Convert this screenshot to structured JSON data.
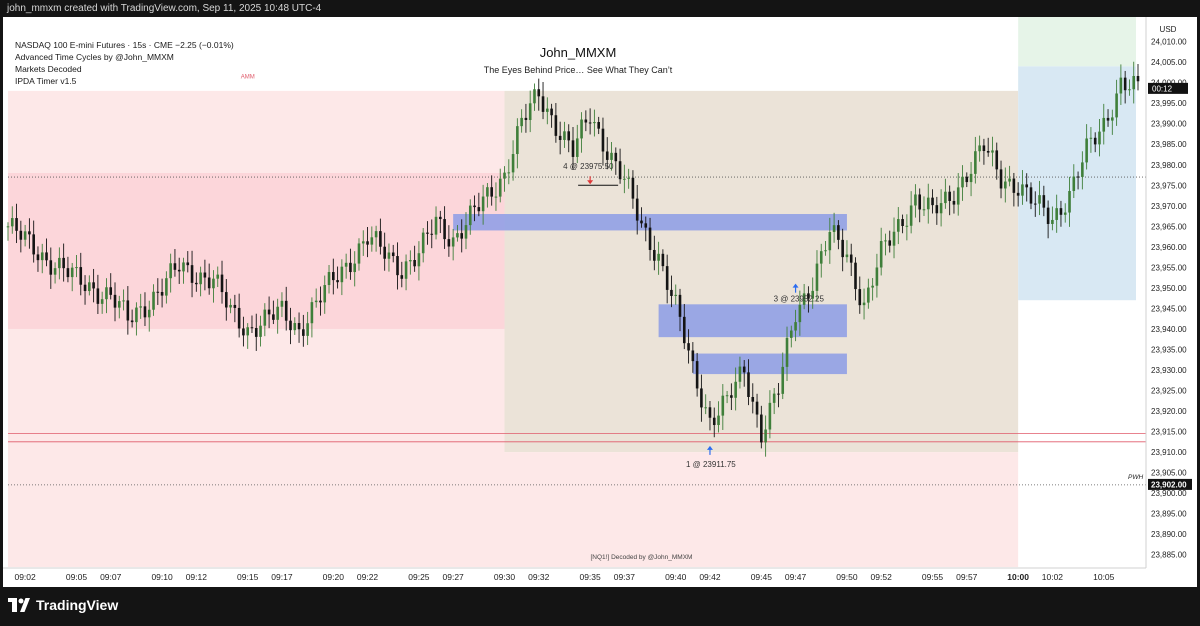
{
  "header": {
    "caption": "john_mmxm created with TradingView.com, Sep 11, 2025 10:48 UTC-4"
  },
  "legend": {
    "symbol_line": "NASDAQ 100 E-mini Futures · 15s · CME  −2.25 (−0.01%)",
    "indicators": [
      "Advanced Time Cycles by @John_MMXM",
      "Markets Decoded",
      "IPDA Timer v1.5"
    ]
  },
  "branding": {
    "title": "John_MMXM",
    "subtitle": "The Eyes Behind Price… See What They Can’t",
    "watermark": "[NQ1!] Decoded by @John_MMXM",
    "amm_label": "AMM"
  },
  "price_axis": {
    "currency": "USD",
    "countdown": "00:12",
    "pwh_label": "PWH",
    "pwh_price": "23,902.00"
  },
  "footer": {
    "logo_text": "TradingView",
    "logo_icon": "tradingview-logo-icon"
  },
  "colors": {
    "bull": "#3f7f3a",
    "bear": "#141414",
    "box_red": "#fde8e8",
    "box_red_dark": "#fcd6da",
    "box_tan": "#ebe3d8",
    "fvg_blue": "#8c9ce6",
    "box_light_blue": "#d8e8f3",
    "box_light_green": "#e6f4e8",
    "up_arrow": "#2b6cf0",
    "down_arrow": "#e03a3a"
  },
  "chart_data": {
    "type": "candlestick",
    "symbol": "NQ1!",
    "interval": "15s",
    "currency": "USD",
    "ylim": [
      23882,
      24016
    ],
    "xlim": [
      "09:01",
      "10:07"
    ],
    "y_ticks": [
      "23,885.00",
      "23,890.00",
      "23,895.00",
      "23,900.00",
      "23,905.00",
      "23,910.00",
      "23,915.00",
      "23,920.00",
      "23,925.00",
      "23,930.00",
      "23,935.00",
      "23,940.00",
      "23,945.00",
      "23,950.00",
      "23,955.00",
      "23,960.00",
      "23,965.00",
      "23,970.00",
      "23,975.00",
      "23,980.00",
      "23,985.00",
      "23,990.00",
      "23,995.00",
      "24,000.00",
      "24,005.00",
      "24,010.00"
    ],
    "x_ticks": [
      "09:02",
      "09:05",
      "09:07",
      "09:10",
      "09:12",
      "09:15",
      "09:17",
      "09:20",
      "09:22",
      "09:25",
      "09:27",
      "09:30",
      "09:32",
      "09:35",
      "09:37",
      "09:40",
      "09:42",
      "09:45",
      "09:47",
      "09:50",
      "09:52",
      "09:55",
      "09:57",
      "10:00",
      "10:02",
      "10:05"
    ],
    "last_price": 23998,
    "price_path": [
      [
        "09:01",
        23965
      ],
      [
        "09:03",
        23958
      ],
      [
        "09:05",
        23952
      ],
      [
        "09:07",
        23948
      ],
      [
        "09:08",
        23942
      ],
      [
        "09:10",
        23950
      ],
      [
        "09:11",
        23955
      ],
      [
        "09:13",
        23952
      ],
      [
        "09:14",
        23944
      ],
      [
        "09:15",
        23940
      ],
      [
        "09:17",
        23944
      ],
      [
        "09:18",
        23940
      ],
      [
        "09:20",
        23952
      ],
      [
        "09:21",
        23957
      ],
      [
        "09:22",
        23962
      ],
      [
        "09:24",
        23955
      ],
      [
        "09:25",
        23958
      ],
      [
        "09:26",
        23966
      ],
      [
        "09:27",
        23962
      ],
      [
        "09:28",
        23967
      ],
      [
        "09:29",
        23972
      ],
      [
        "09:30",
        23978
      ],
      [
        "09:31",
        23990
      ],
      [
        "09:32",
        23997
      ],
      [
        "09:33",
        23990
      ],
      [
        "09:34",
        23983
      ],
      [
        "09:35",
        23992
      ],
      [
        "09:36",
        23984
      ],
      [
        "09:37",
        23976
      ],
      [
        "09:38",
        23965
      ],
      [
        "09:39",
        23958
      ],
      [
        "09:40",
        23945
      ],
      [
        "09:41",
        23930
      ],
      [
        "09:42",
        23918
      ],
      [
        "09:43",
        23922
      ],
      [
        "09:44",
        23930
      ],
      [
        "09:45",
        23915
      ],
      [
        "09:46",
        23925
      ],
      [
        "09:47",
        23944
      ],
      [
        "09:48",
        23952
      ],
      [
        "09:49",
        23963
      ],
      [
        "09:50",
        23958
      ],
      [
        "09:51",
        23946
      ],
      [
        "09:52",
        23958
      ],
      [
        "09:53",
        23965
      ],
      [
        "09:54",
        23972
      ],
      [
        "09:55",
        23968
      ],
      [
        "09:56",
        23972
      ],
      [
        "09:57",
        23978
      ],
      [
        "09:58",
        23984
      ],
      [
        "09:59",
        23977
      ],
      [
        "10:00",
        23975
      ],
      [
        "10:01",
        23970
      ],
      [
        "10:02",
        23967
      ],
      [
        "10:03",
        23973
      ],
      [
        "10:04",
        23983
      ],
      [
        "10:05",
        23990
      ],
      [
        "10:06",
        24000
      ],
      [
        "10:07",
        23998
      ]
    ],
    "levels": [
      {
        "label": "PWH",
        "price": 23902,
        "style": "dotted"
      },
      {
        "price": 23977,
        "style": "dotted"
      },
      {
        "price": 23914.5,
        "style": "solid-red"
      },
      {
        "price": 23912.5,
        "style": "solid-red"
      }
    ],
    "zones": [
      {
        "kind": "light-red",
        "from": "09:01",
        "to": "09:30",
        "top": 23998,
        "bottom": 23882
      },
      {
        "kind": "red",
        "from": "09:01",
        "to": "09:30",
        "top": 23978,
        "bottom": 23940
      },
      {
        "kind": "tan",
        "from": "09:30",
        "to": "10:00",
        "top": 23998,
        "bottom": 23910
      },
      {
        "kind": "light-red",
        "from": "09:30",
        "to": "10:00",
        "top": 23910,
        "bottom": 23882
      },
      {
        "kind": "fvg",
        "from": "09:27",
        "to": "09:50",
        "top": 23968,
        "bottom": 23964
      },
      {
        "kind": "fvg",
        "from": "09:39",
        "to": "09:50",
        "top": 23946,
        "bottom": 23938
      },
      {
        "kind": "fvg",
        "from": "09:41",
        "to": "09:50",
        "top": 23934,
        "bottom": 23929
      },
      {
        "kind": "light-blue",
        "from": "10:00",
        "to": "10:07",
        "top": 24004,
        "bottom": 23947
      },
      {
        "kind": "light-green",
        "from": "10:00",
        "to": "10:07",
        "top": 24016,
        "bottom": 24004
      }
    ],
    "annotations": [
      {
        "text": "4 @ 23975.50",
        "time": "09:35",
        "price": 23975.5,
        "arrow": "down"
      },
      {
        "text": "3 @ 23952.25",
        "time": "09:47",
        "price": 23952.25,
        "arrow": "up"
      },
      {
        "text": "1 @ 23911.75",
        "time": "09:42",
        "price": 23911.75,
        "arrow": "up"
      }
    ]
  }
}
